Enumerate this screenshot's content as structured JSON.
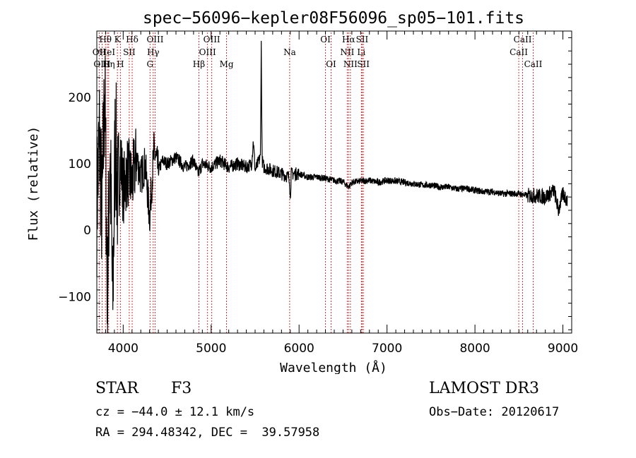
{
  "chart_data": {
    "type": "line",
    "title": "spec−56096−kepler08F56096_sp05−101.fits",
    "xlabel": "Wavelength (Å)",
    "ylabel": "Flux (relative)",
    "xlim": [
      3700,
      9100
    ],
    "ylim": [
      -155,
      300
    ],
    "xticks": [
      4000,
      5000,
      6000,
      7000,
      8000,
      9000
    ],
    "xtick_labels": [
      "4000",
      "5000",
      "6000",
      "7000",
      "8000",
      "9000"
    ],
    "yticks": [
      -100,
      0,
      100,
      200
    ],
    "ytick_labels": [
      "−100",
      "0",
      "100",
      "200"
    ],
    "grid": false,
    "series": [
      {
        "name": "flux",
        "x": [
          3700,
          3730,
          3760,
          3790,
          3820,
          3850,
          3880,
          3910,
          3940,
          3970,
          4000,
          4050,
          4100,
          4150,
          4200,
          4250,
          4300,
          4350,
          4400,
          4450,
          4500,
          4600,
          4700,
          4800,
          4850,
          4900,
          5000,
          5100,
          5200,
          5300,
          5400,
          5460,
          5480,
          5500,
          5560,
          5570,
          5580,
          5600,
          5700,
          5800,
          5890,
          5900,
          5910,
          6000,
          6100,
          6200,
          6300,
          6400,
          6500,
          6563,
          6600,
          6700,
          6800,
          6900,
          7000,
          7100,
          7200,
          7300,
          7400,
          7500,
          7600,
          7700,
          7800,
          7900,
          8000,
          8100,
          8200,
          8300,
          8400,
          8500,
          8600,
          8700,
          8800,
          8850,
          8900,
          8950,
          9000,
          9050
        ],
        "y": [
          40,
          140,
          20,
          220,
          -100,
          130,
          -120,
          150,
          40,
          110,
          60,
          90,
          70,
          110,
          80,
          100,
          20,
          120,
          90,
          105,
          100,
          110,
          95,
          105,
          85,
          100,
          95,
          105,
          95,
          100,
          95,
          100,
          135,
          90,
          110,
          280,
          105,
          95,
          90,
          85,
          80,
          45,
          85,
          85,
          80,
          80,
          78,
          75,
          73,
          65,
          72,
          74,
          75,
          72,
          75,
          74,
          72,
          70,
          68,
          68,
          65,
          65,
          62,
          63,
          60,
          58,
          58,
          55,
          55,
          55,
          52,
          52,
          50,
          55,
          60,
          30,
          55,
          45
        ]
      }
    ],
    "lines": [
      {
        "name": "OII",
        "x": 3727,
        "row": 1
      },
      {
        "name": "OIII",
        "x": 3760,
        "row": 2
      },
      {
        "name": "Hθ",
        "x": 3798,
        "row": 0
      },
      {
        "name": "HeI",
        "x": 3820,
        "row": 1
      },
      {
        "name": "Hη",
        "x": 3835,
        "row": 2
      },
      {
        "name": "K",
        "x": 3934,
        "row": 0
      },
      {
        "name": "SII",
        "x": 4069,
        "row": 1
      },
      {
        "name": "H",
        "x": 3968,
        "row": 2
      },
      {
        "name": "Hδ",
        "x": 4102,
        "row": 0
      },
      {
        "name": "OIII",
        "x": 4363,
        "row": 0
      },
      {
        "name": "Hγ",
        "x": 4341,
        "row": 1
      },
      {
        "name": "G",
        "x": 4305,
        "row": 2
      },
      {
        "name": "Hβ",
        "x": 4861,
        "row": 2
      },
      {
        "name": "OIII",
        "x": 5007,
        "row": 0
      },
      {
        "name": "OIII",
        "x": 4959,
        "row": 1
      },
      {
        "name": "Mg",
        "x": 5175,
        "row": 2
      },
      {
        "name": "Na",
        "x": 5893,
        "row": 1
      },
      {
        "name": "OI",
        "x": 6300,
        "row": 0
      },
      {
        "name": "OI",
        "x": 6364,
        "row": 2
      },
      {
        "name": "Hα",
        "x": 6563,
        "row": 0
      },
      {
        "name": "NII",
        "x": 6548,
        "row": 1
      },
      {
        "name": "NII",
        "x": 6584,
        "row": 2
      },
      {
        "name": "SII",
        "x": 6717,
        "row": 0
      },
      {
        "name": "Li",
        "x": 6708,
        "row": 1
      },
      {
        "name": "SII",
        "x": 6731,
        "row": 2
      },
      {
        "name": "CaII",
        "x": 8542,
        "row": 0
      },
      {
        "name": "CaII",
        "x": 8498,
        "row": 1
      },
      {
        "name": "CaII",
        "x": 8662,
        "row": 2
      }
    ]
  },
  "info": {
    "object_class": "STAR",
    "subclass": "F3",
    "survey": "LAMOST DR3",
    "cz": "cz = −44.0 ± 12.1 km/s",
    "obs_date": "Obs−Date: 20120617",
    "radec": "RA = 294.48342, DEC =  39.57958"
  },
  "colors": {
    "spectrum": "#000000",
    "line_marker": "#cc2222",
    "axes": "#000000"
  }
}
